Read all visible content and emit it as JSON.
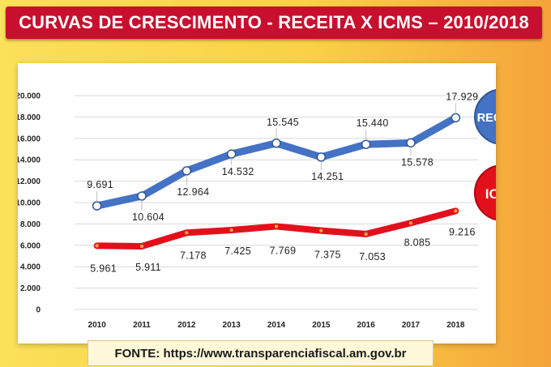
{
  "title": "CURVAS DE CRESCIMENTO - RECEITA X ICMS – 2010/2018",
  "source": "FONTE: https://www.transparenciafiscal.am.gov.br",
  "colors": {
    "receita": "#4472c4",
    "icms": "#e3101c",
    "title_bg": "#c8102e"
  },
  "chart_data": {
    "type": "line",
    "x": [
      "2010",
      "2011",
      "2012",
      "2013",
      "2014",
      "2015",
      "2016",
      "2017",
      "2018"
    ],
    "ylim": [
      0,
      20000
    ],
    "yticks": [
      "0",
      "2.000",
      "4.000",
      "6.000",
      "8.000",
      "10.000",
      "12.000",
      "14.000",
      "16.000",
      "18.000",
      "20.000"
    ],
    "grid": true,
    "series": [
      {
        "name": "RECEITA",
        "values": [
          9691,
          10604,
          12964,
          14532,
          15545,
          14251,
          15440,
          15578,
          17929
        ],
        "labels": [
          "9.691",
          "10.604",
          "12.964",
          "14.532",
          "15.545",
          "14.251",
          "15.440",
          "15.578",
          "17.929"
        ]
      },
      {
        "name": "ICMS",
        "values": [
          5961,
          5911,
          7178,
          7425,
          7769,
          7375,
          7053,
          8085,
          9216
        ],
        "labels": [
          "5.961",
          "5.911",
          "7.178",
          "7.425",
          "7.769",
          "7.375",
          "7.053",
          "8.085",
          "9.216"
        ]
      }
    ]
  }
}
